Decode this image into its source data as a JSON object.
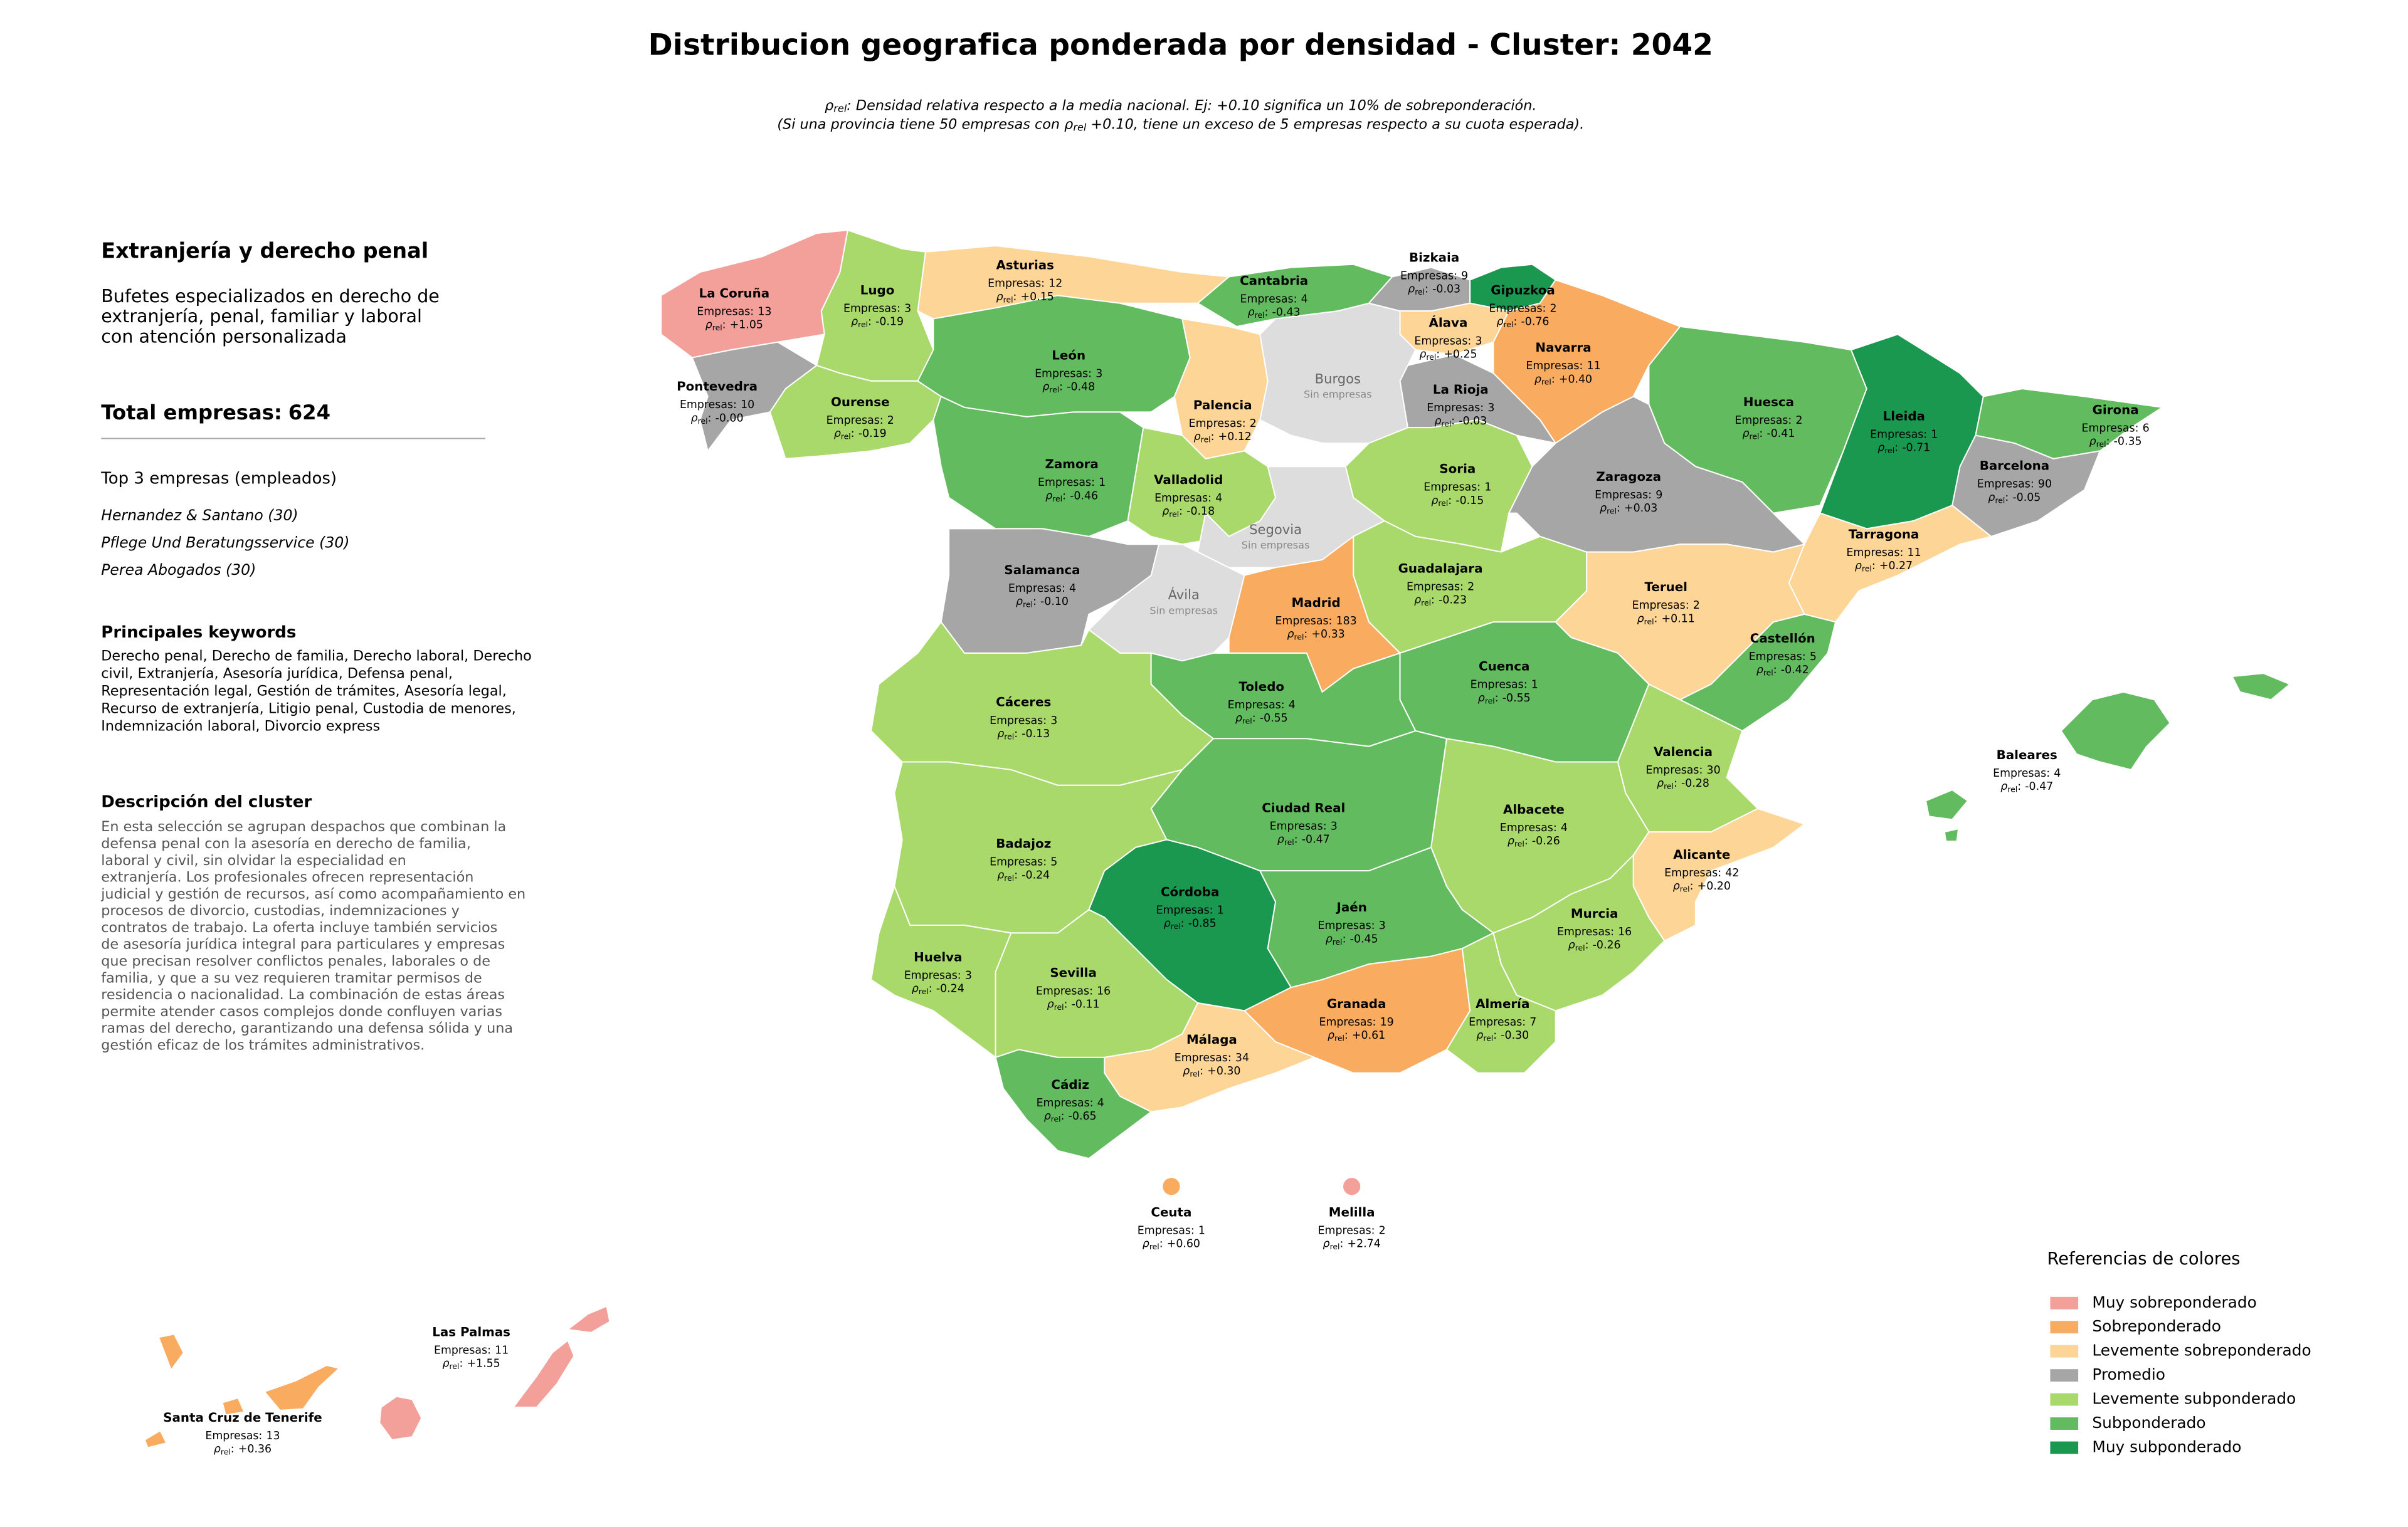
{
  "header": {
    "title": "Distribucion geografica ponderada por densidad - Cluster: 2042",
    "notes": [
      [
        {
          "text": "ρ"
        },
        {
          "text": "rel",
          "sub": true
        },
        {
          "text": ": Densidad relativa respecto a la media nacional. Ej: +0.10 significa un 10% de sobreponderación."
        }
      ],
      [
        {
          "text": "(Si una provincia tiene 50 empresas con "
        },
        {
          "text": "ρ"
        },
        {
          "text": "rel",
          "sub": true
        },
        {
          "text": " +0.10, tiene un exceso de 5 empresas respecto a su cuota esperada)."
        }
      ]
    ]
  },
  "sidebar": {
    "title": "Extranjería y derecho penal",
    "description_lines": [
      "Bufetes especializados en derecho de",
      "extranjería, penal, familiar y laboral",
      "con atención personalizada"
    ],
    "total_label": "Total empresas:",
    "total": 624,
    "top_title": "Top 3 empresas (empleados)",
    "top": [
      "Hernandez & Santano (30)",
      "Pflege Und Beratungsservice (30)",
      "Perea Abogados (30)"
    ],
    "keywords_title": "Principales keywords",
    "keywords_lines": [
      "Derecho penal, Derecho de familia, Derecho laboral, Derecho",
      "civil, Extranjería, Asesoría jurídica, Defensa penal,",
      "Representación legal, Gestión de trámites, Asesoría legal,",
      "Recurso de extranjería, Litigio penal, Custodia de menores,",
      "Indemnización laboral, Divorcio express"
    ],
    "cluster_title": "Descripción del cluster",
    "cluster_lines": [
      "En esta selección se agrupan despachos que combinan la",
      "defensa penal con la asesoría en derecho de familia,",
      "laboral y civil, sin olvidar la especialidad en",
      "extranjería. Los profesionales ofrecen representación",
      "judicial y gestión de recursos, así como acompañamiento en",
      "procesos de divorcio, custodias, indemnizaciones y",
      "contratos de trabajo. La oferta incluye también servicios",
      "de asesoría jurídica integral para particulares y empresas",
      "que precisan resolver conflictos penales, laborales o de",
      "familia, y que a su vez requieren tramitar permisos de",
      "residencia o nacionalidad. La combinación de estas áreas",
      "permite atender casos complejos donde confluyen varias",
      "ramas del derecho, garantizando una defensa sólida y una",
      "gestión eficaz de los trámites administrativos."
    ]
  },
  "labels": {
    "companies": "Empresas:",
    "rho": "ρ",
    "rho_sub": "rel",
    "rho_colon": ":"
  },
  "provinces": [
    {
      "name": "La Coruña",
      "companies": 13,
      "rho": "+1.05",
      "color": "#f4a09a"
    },
    {
      "name": "Lugo",
      "companies": 3,
      "rho": "-0.19",
      "color": "#a8d96a"
    },
    {
      "name": "Asturias",
      "companies": 12,
      "rho": "+0.15",
      "color": "#fdd597"
    },
    {
      "name": "Cantabria",
      "companies": 4,
      "rho": "-0.43",
      "color": "#63bb5f"
    },
    {
      "name": "Bizkaia",
      "companies": 9,
      "rho": "-0.03",
      "color": "#a6a6a6"
    },
    {
      "name": "Gipuzkoa",
      "companies": 2,
      "rho": "-0.76",
      "color": "#1a9850"
    },
    {
      "name": "Álava",
      "companies": 3,
      "rho": "+0.25",
      "color": "#fdd597"
    },
    {
      "name": "Navarra",
      "companies": 11,
      "rho": "+0.40",
      "color": "#f9ab5f"
    },
    {
      "name": "Pontevedra",
      "companies": 10,
      "rho": "-0.00",
      "color": "#a6a6a6"
    },
    {
      "name": "Ourense",
      "companies": 2,
      "rho": "-0.19",
      "color": "#a8d96a"
    },
    {
      "name": "León",
      "companies": 3,
      "rho": "-0.48",
      "color": "#63bb5f"
    },
    {
      "name": "Palencia",
      "companies": 2,
      "rho": "+0.12",
      "color": "#fdd597"
    },
    {
      "name": "Burgos",
      "status": "Sin empresas",
      "color": "#dddddd"
    },
    {
      "name": "La Rioja",
      "companies": 3,
      "rho": "-0.03",
      "color": "#a6a6a6"
    },
    {
      "name": "Huesca",
      "companies": 2,
      "rho": "-0.41",
      "color": "#63bb5f"
    },
    {
      "name": "Lleida",
      "companies": 1,
      "rho": "-0.71",
      "color": "#1a9850"
    },
    {
      "name": "Girona",
      "companies": 6,
      "rho": "-0.35",
      "color": "#63bb5f"
    },
    {
      "name": "Barcelona",
      "companies": 90,
      "rho": "-0.05",
      "color": "#a6a6a6"
    },
    {
      "name": "Zamora",
      "companies": 1,
      "rho": "-0.46",
      "color": "#63bb5f"
    },
    {
      "name": "Valladolid",
      "companies": 4,
      "rho": "-0.18",
      "color": "#a8d96a"
    },
    {
      "name": "Soria",
      "companies": 1,
      "rho": "-0.15",
      "color": "#a8d96a"
    },
    {
      "name": "Zaragoza",
      "companies": 9,
      "rho": "+0.03",
      "color": "#a6a6a6"
    },
    {
      "name": "Salamanca",
      "companies": 4,
      "rho": "-0.10",
      "color": "#a6a6a6"
    },
    {
      "name": "Segovia",
      "status": "Sin empresas",
      "color": "#dddddd"
    },
    {
      "name": "Tarragona",
      "companies": 11,
      "rho": "+0.27",
      "color": "#fdd597"
    },
    {
      "name": "Guadalajara",
      "companies": 2,
      "rho": "-0.23",
      "color": "#a8d96a"
    },
    {
      "name": "Ávila",
      "status": "Sin empresas",
      "color": "#dddddd"
    },
    {
      "name": "Madrid",
      "companies": 183,
      "rho": "+0.33",
      "color": "#f9ab5f"
    },
    {
      "name": "Teruel",
      "companies": 2,
      "rho": "+0.11",
      "color": "#fdd597"
    },
    {
      "name": "Castellón",
      "companies": 5,
      "rho": "-0.42",
      "color": "#63bb5f"
    },
    {
      "name": "Cáceres",
      "companies": 3,
      "rho": "-0.13",
      "color": "#a8d96a"
    },
    {
      "name": "Toledo",
      "companies": 4,
      "rho": "-0.55",
      "color": "#63bb5f"
    },
    {
      "name": "Cuenca",
      "companies": 1,
      "rho": "-0.55",
      "color": "#63bb5f"
    },
    {
      "name": "Baleares",
      "companies": 4,
      "rho": "-0.47",
      "color": "#63bb5f"
    },
    {
      "name": "Valencia",
      "companies": 30,
      "rho": "-0.28",
      "color": "#a8d96a"
    },
    {
      "name": "Ciudad Real",
      "companies": 3,
      "rho": "-0.47",
      "color": "#63bb5f"
    },
    {
      "name": "Albacete",
      "companies": 4,
      "rho": "-0.26",
      "color": "#a8d96a"
    },
    {
      "name": "Badajoz",
      "companies": 5,
      "rho": "-0.24",
      "color": "#a8d96a"
    },
    {
      "name": "Alicante",
      "companies": 42,
      "rho": "+0.20",
      "color": "#fdd597"
    },
    {
      "name": "Córdoba",
      "companies": 1,
      "rho": "-0.85",
      "color": "#1a9850"
    },
    {
      "name": "Jaén",
      "companies": 3,
      "rho": "-0.45",
      "color": "#63bb5f"
    },
    {
      "name": "Murcia",
      "companies": 16,
      "rho": "-0.26",
      "color": "#a8d96a"
    },
    {
      "name": "Huelva",
      "companies": 3,
      "rho": "-0.24",
      "color": "#a8d96a"
    },
    {
      "name": "Sevilla",
      "companies": 16,
      "rho": "-0.11",
      "color": "#a8d96a"
    },
    {
      "name": "Granada",
      "companies": 19,
      "rho": "+0.61",
      "color": "#f9ab5f"
    },
    {
      "name": "Almería",
      "companies": 7,
      "rho": "-0.30",
      "color": "#a8d96a"
    },
    {
      "name": "Málaga",
      "companies": 34,
      "rho": "+0.30",
      "color": "#fdd597"
    },
    {
      "name": "Cádiz",
      "companies": 4,
      "rho": "-0.65",
      "color": "#63bb5f"
    },
    {
      "name": "Ceuta",
      "companies": 1,
      "rho": "+0.60",
      "color": "#f9ab5f"
    },
    {
      "name": "Melilla",
      "companies": 2,
      "rho": "+2.74",
      "color": "#f4a09a"
    },
    {
      "name": "Las Palmas",
      "companies": 11,
      "rho": "+1.55",
      "color": "#f4a09a"
    },
    {
      "name": "Santa Cruz de Tenerife",
      "companies": 13,
      "rho": "+0.36",
      "color": "#f9ab5f"
    }
  ],
  "legend": {
    "title": "Referencias de colores",
    "items": [
      {
        "label": "Muy sobreponderado",
        "color": "#f4a09a"
      },
      {
        "label": "Sobreponderado",
        "color": "#f9ab5f"
      },
      {
        "label": "Levemente sobreponderado",
        "color": "#fdd597"
      },
      {
        "label": "Promedio",
        "color": "#a6a6a6"
      },
      {
        "label": "Levemente subponderado",
        "color": "#a8d96a"
      },
      {
        "label": "Subponderado",
        "color": "#63bb5f"
      },
      {
        "label": "Muy subponderado",
        "color": "#1a9850"
      }
    ]
  }
}
